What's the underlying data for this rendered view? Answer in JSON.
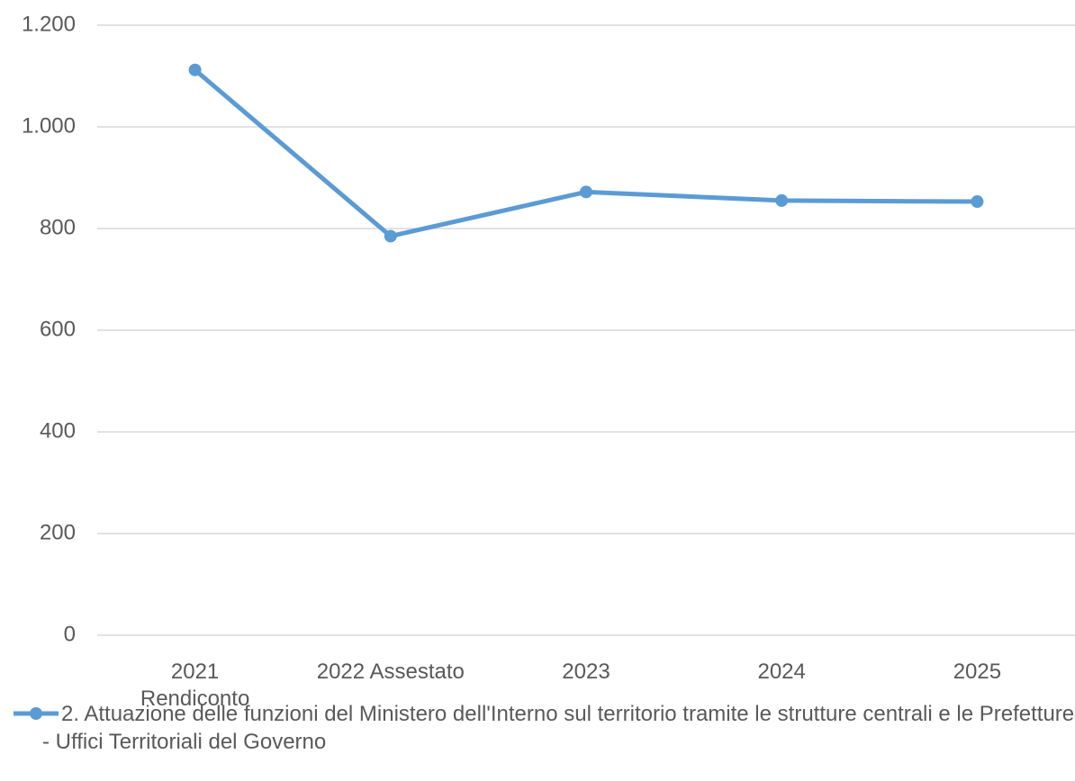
{
  "chart_data": {
    "type": "line",
    "categories": [
      "2021\nRendiconto",
      "2022 Assestato",
      "2023",
      "2024",
      "2025"
    ],
    "series": [
      {
        "name": "2. Attuazione delle funzioni del Ministero dell'Interno sul territorio tramite le strutture centrali e le Prefetture - Uffici Territoriali del Governo",
        "color": "#5b9bd5",
        "values": [
          1112,
          785,
          872,
          855,
          853
        ]
      }
    ],
    "ylim": [
      0,
      1200
    ],
    "yticks": [
      0,
      200,
      400,
      600,
      800,
      {
        "value": 1000,
        "label": "1.000"
      },
      {
        "value": 1200,
        "label": "1.200"
      }
    ],
    "grid": true,
    "legend": "bottom"
  }
}
